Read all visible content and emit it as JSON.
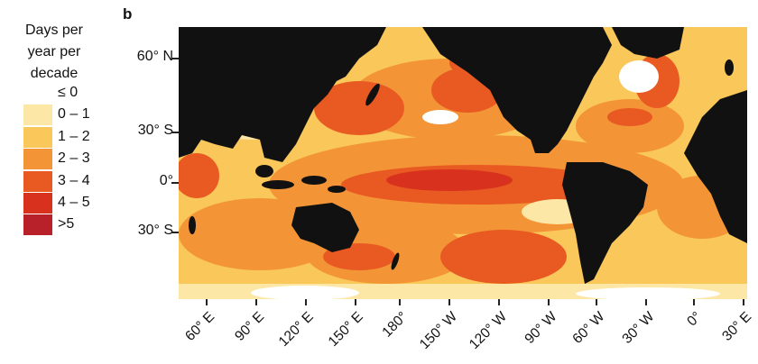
{
  "panel_label": "b",
  "legend": {
    "title_lines": [
      "Days per",
      "year per",
      "decade"
    ],
    "items": [
      {
        "label": "≤ 0",
        "color": "#ffffff"
      },
      {
        "label": "0 – 1",
        "color": "#fde7a6"
      },
      {
        "label": "1 – 2",
        "color": "#f9c75a"
      },
      {
        "label": "2 – 3",
        "color": "#f39536"
      },
      {
        "label": "3 – 4",
        "color": "#e95a22"
      },
      {
        "label": "4 – 5",
        "color": "#d8321f"
      },
      {
        "label": ">5",
        "color": "#b8202a"
      }
    ]
  },
  "map": {
    "land_color": "#111111",
    "ocean_base_color": "#f6c766"
  },
  "y_axis_labels": [
    "60° N",
    "30° S",
    "0°",
    "30° S"
  ],
  "x_axis_labels": [
    "60° E",
    "90° E",
    "120° E",
    "150° E",
    "180°",
    "150° W",
    "120° W",
    "90° W",
    "60° W",
    "30° W",
    "0°",
    "30° E"
  ]
}
